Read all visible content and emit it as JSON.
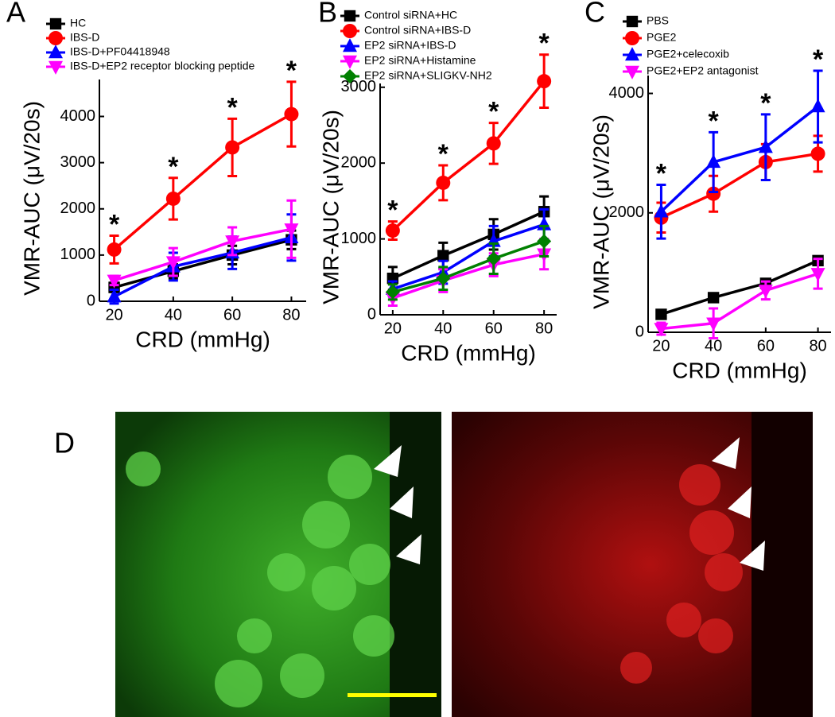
{
  "chart_data": [
    {
      "type": "line",
      "panel": "A",
      "xlabel": "CRD (mmHg)",
      "ylabel": "VMR-AUC (μV/20s)",
      "xlim": [
        15,
        85
      ],
      "xticks": [
        20,
        40,
        60,
        80
      ],
      "ylim": [
        0,
        4800
      ],
      "yticks": [
        0,
        1000,
        2000,
        3000,
        4000
      ],
      "x": [
        20,
        40,
        60,
        80
      ],
      "series": [
        {
          "name": "HC",
          "color": "#000000",
          "marker": "square",
          "values": [
            300,
            650,
            1000,
            1330
          ],
          "errors": [
            100,
            150,
            200,
            200
          ]
        },
        {
          "name": "IBS-D",
          "color": "#ff0000",
          "marker": "circle",
          "values": [
            1120,
            2220,
            3330,
            4050
          ],
          "errors": [
            300,
            450,
            620,
            700
          ]
        },
        {
          "name": "IBS-D+PF04418948",
          "color": "#0000ff",
          "marker": "triangle-up",
          "values": [
            100,
            750,
            1050,
            1380
          ],
          "errors": [
            150,
            300,
            350,
            500
          ]
        },
        {
          "name": "IBS-D+EP2 receptor blocking peptide",
          "color": "#ff00ff",
          "marker": "triangle-down",
          "values": [
            450,
            850,
            1300,
            1560
          ],
          "errors": [
            100,
            300,
            300,
            620
          ]
        }
      ],
      "annotations": [
        "*",
        "*",
        "*",
        "*"
      ]
    },
    {
      "type": "line",
      "panel": "B",
      "xlabel": "CRD (mmHg)",
      "ylabel": "VMR-AUC (μV/20s)",
      "xlim": [
        15,
        85
      ],
      "xticks": [
        20,
        40,
        60,
        80
      ],
      "ylim": [
        0,
        3050
      ],
      "yticks": [
        0,
        1000,
        2000,
        3000
      ],
      "x": [
        20,
        40,
        60,
        80
      ],
      "series": [
        {
          "name": "Control siRNA+HC",
          "color": "#000000",
          "marker": "square",
          "values": [
            480,
            780,
            1060,
            1360
          ],
          "errors": [
            150,
            170,
            200,
            200
          ]
        },
        {
          "name": "Control siRNA+IBS-D",
          "color": "#ff0000",
          "marker": "circle",
          "values": [
            1110,
            1740,
            2260,
            3080
          ],
          "errors": [
            120,
            230,
            270,
            350
          ]
        },
        {
          "name": "EP2 siRNA+IBS-D",
          "color": "#0000ff",
          "marker": "triangle-up",
          "values": [
            340,
            560,
            970,
            1190
          ],
          "errors": [
            100,
            150,
            200,
            200
          ]
        },
        {
          "name": "EP2 siRNA+Histamine",
          "color": "#ff00ff",
          "marker": "triangle-down",
          "values": [
            220,
            450,
            660,
            800
          ],
          "errors": [
            100,
            150,
            150,
            200
          ]
        },
        {
          "name": "EP2 siRNA+SLIGKV-NH2",
          "color": "#008000",
          "marker": "diamond",
          "values": [
            300,
            480,
            740,
            970
          ],
          "errors": [
            100,
            150,
            200,
            200
          ]
        }
      ],
      "annotations": [
        "*",
        "*",
        "*",
        "*"
      ]
    },
    {
      "type": "line",
      "panel": "C",
      "xlabel": "CRD (mmHg)",
      "ylabel": "VMR-AUC (μV/20s)",
      "xlim": [
        15,
        85
      ],
      "xticks": [
        20,
        40,
        60,
        80
      ],
      "ylim": [
        0,
        4300
      ],
      "yticks": [
        0,
        2000,
        4000
      ],
      "x": [
        20,
        40,
        60,
        80
      ],
      "series": [
        {
          "name": "PBS",
          "color": "#000000",
          "marker": "square",
          "values": [
            300,
            580,
            820,
            1200
          ],
          "errors": [
            50,
            50,
            50,
            50
          ]
        },
        {
          "name": "PGE2",
          "color": "#ff0000",
          "marker": "circle",
          "values": [
            1920,
            2320,
            2850,
            2990
          ],
          "errors": [
            250,
            300,
            300,
            300
          ]
        },
        {
          "name": "PGE2+celecoxib",
          "color": "#0000ff",
          "marker": "triangle-up",
          "values": [
            2020,
            2850,
            3100,
            3780
          ],
          "errors": [
            450,
            500,
            550,
            600
          ]
        },
        {
          "name": "PGE2+EP2 antagonist",
          "color": "#ff00ff",
          "marker": "triangle-down",
          "values": [
            60,
            150,
            700,
            980
          ],
          "errors": [
            100,
            250,
            150,
            250
          ]
        }
      ],
      "annotations": [
        "*",
        "*",
        "*",
        "*"
      ]
    }
  ],
  "panel_d": {
    "label": "D"
  }
}
